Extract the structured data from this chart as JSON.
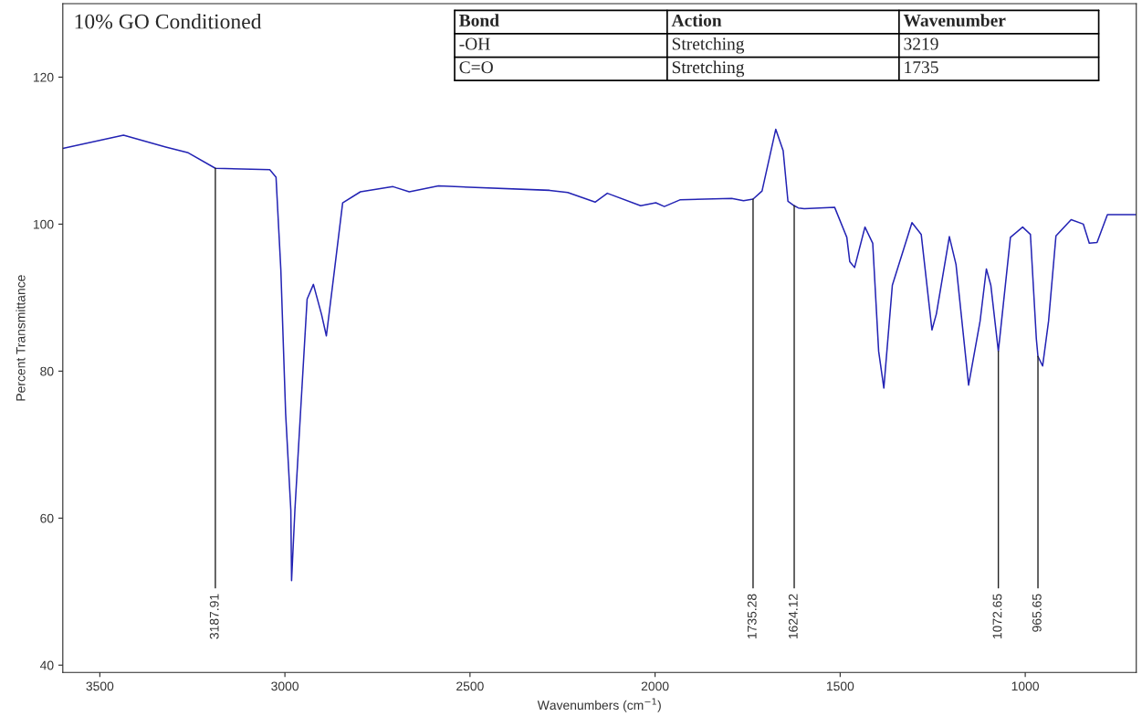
{
  "chart_data": {
    "type": "line",
    "title": "10% GO Conditioned",
    "xlabel": "Wavenumbers (cm$^{−1}$)",
    "ylabel": "Percent Transmittance",
    "xlim": [
      3600,
      700
    ],
    "ylim": [
      39,
      130
    ],
    "xticks": [
      3500,
      3000,
      2500,
      2000,
      1500,
      1000
    ],
    "yticks": [
      40,
      60,
      80,
      100,
      120
    ],
    "grid": false,
    "legend": false,
    "series": [
      {
        "color": "#2323b4",
        "x": [
          3600,
          3436,
          3322,
          3261,
          3187.91,
          3041,
          3024,
          3011,
          2998,
          2984,
          2982,
          2973,
          2958,
          2940,
          2923,
          2901,
          2888,
          2866,
          2844,
          2796,
          2708,
          2664,
          2585,
          2285,
          2236,
          2162,
          2129,
          2039,
          1998,
          1975,
          1933,
          1793,
          1761,
          1735.28,
          1711,
          1674,
          1654,
          1641,
          1624.12,
          1613,
          1597,
          1515,
          1482,
          1474,
          1461,
          1433,
          1412,
          1396,
          1382,
          1359,
          1306,
          1281,
          1252,
          1240,
          1205,
          1187,
          1153,
          1122,
          1105,
          1093,
          1072.65,
          1040,
          1007,
          986,
          970,
          965.65,
          953,
          937,
          917,
          876,
          843,
          827,
          806,
          778,
          700
        ],
        "values": [
          110.3,
          112.1,
          110.5,
          109.7,
          107.6,
          107.4,
          106.4,
          93.8,
          74.2,
          61.1,
          51.5,
          61.1,
          74.2,
          89.8,
          91.8,
          87.7,
          84.8,
          93.8,
          102.9,
          104.4,
          105.1,
          104.4,
          105.2,
          104.6,
          104.3,
          103.0,
          104.2,
          102.5,
          102.9,
          102.4,
          103.3,
          103.5,
          103.2,
          103.4,
          104.5,
          112.9,
          110.0,
          103.1,
          102.5,
          102.2,
          102.1,
          102.3,
          98.2,
          94.9,
          94.1,
          99.6,
          97.4,
          82.7,
          77.7,
          91.7,
          100.2,
          98.6,
          85.6,
          87.8,
          98.3,
          94.5,
          78.1,
          86.8,
          93.9,
          91.7,
          82.7,
          98.2,
          99.6,
          98.6,
          84.4,
          82.0,
          80.7,
          86.8,
          98.4,
          100.6,
          100.0,
          97.4,
          97.5,
          101.3,
          101.3
        ]
      }
    ],
    "annotations": [
      "Bond",
      "Action",
      "Wavenumber",
      "-OH",
      "Stretching",
      "3219",
      "C=O",
      "Stretching",
      "1735",
      {
        "text": "3187.91",
        "x": 3187.91,
        "y": 107.6
      },
      {
        "text": "1735.28",
        "x": 1735.28,
        "y": 103.4
      },
      {
        "text": "1624.12",
        "x": 1624.12,
        "y": 102.5
      },
      {
        "text": "1072.65",
        "x": 1072.65,
        "y": 82.7
      },
      {
        "text": "965.65",
        "x": 965.65,
        "y": 82.0
      }
    ]
  }
}
